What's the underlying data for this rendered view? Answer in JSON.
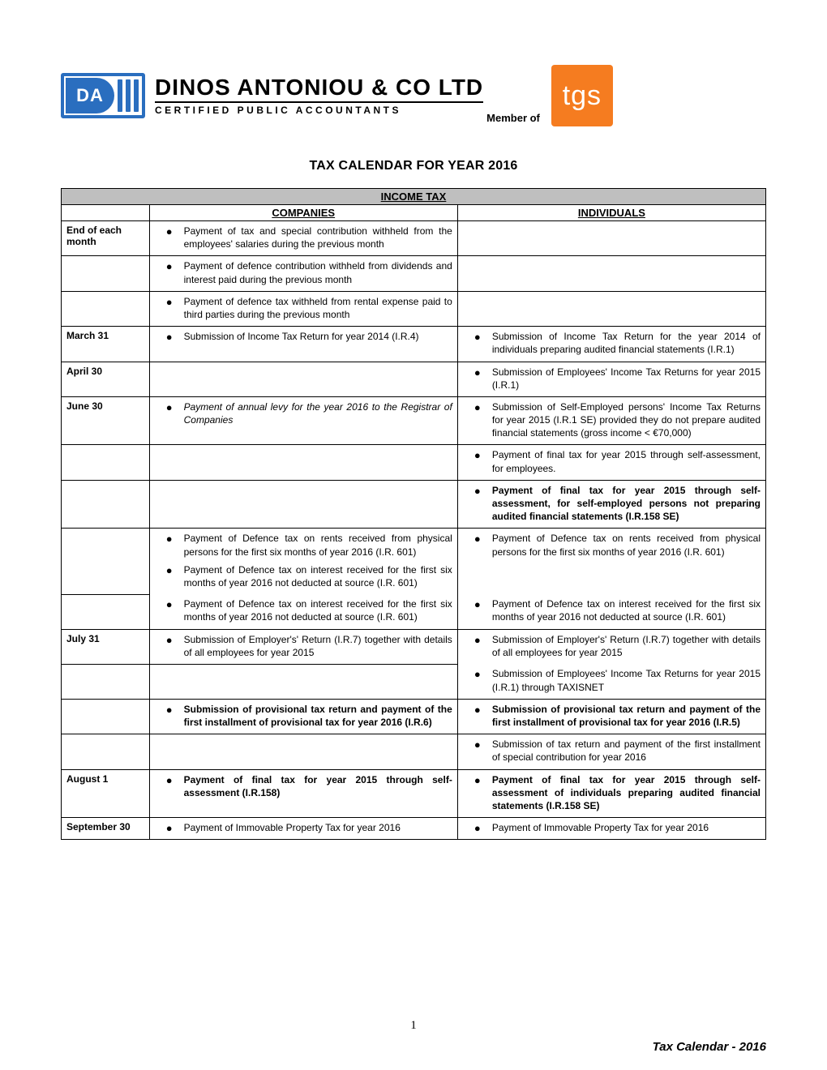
{
  "logo": {
    "mark_letters": "DA",
    "company_name": "DINOS ANTONIOU & CO LTD",
    "company_sub": "CERTIFIED PUBLIC ACCOUNTANTS",
    "member_of": "Member of",
    "tgs": "tgs",
    "brand_blue": "#2a6ebf",
    "brand_orange": "#f57c20"
  },
  "title": "TAX CALENDAR FOR YEAR 2016",
  "table": {
    "income_tax_header": "INCOME TAX",
    "companies_header": "COMPANIES",
    "individuals_header": "INDIVIDUALS",
    "header_bg": "#bfbfbf",
    "rows": [
      {
        "date": "End of each month",
        "comp": "Payment of tax and special contribution withheld from the employees' salaries during the previous month",
        "indiv": ""
      },
      {
        "date": "",
        "comp": "Payment of defence contribution withheld from dividends and interest paid during the previous month",
        "indiv": ""
      },
      {
        "date": "",
        "comp": "Payment of defence tax withheld from rental expense paid to third parties during the previous month",
        "indiv": ""
      },
      {
        "date": "March 31",
        "comp": "Submission of Income Tax Return for year 2014 (I.R.4)",
        "indiv": "Submission of Income Tax Return for the year 2014 of individuals preparing audited financial statements (I.R.1)"
      },
      {
        "date": "April 30",
        "comp": "",
        "indiv": "Submission of Employees' Income Tax Returns for year 2015 (I.R.1)"
      },
      {
        "date": "June 30",
        "comp": "Payment of annual levy for the year 2016 to the Registrar of Companies",
        "comp_italic": true,
        "indiv": "Submission of Self-Employed persons' Income Tax Returns for year 2015 (I.R.1 SE) provided they do not prepare audited financial statements  (gross income < €70,000)"
      },
      {
        "date": "",
        "comp": "",
        "indiv": "Payment of final tax for year 2015 through self-assessment, for employees."
      },
      {
        "date": "",
        "comp": "",
        "indiv": "Payment of final tax for year 2015 through self-assessment, for self-employed persons not preparing audited financial statements (I.R.158 SE)",
        "indiv_bold": true
      },
      {
        "date": "",
        "comp": "Payment of Defence tax on rents received from physical persons for the first six months of year 2016 (I.R. 601)",
        "indiv": "Payment of Defence tax on rents received from physical persons for the first six months of year 2016 (I.R. 601)"
      },
      {
        "date": "",
        "comp": "Payment of Defence tax on interest received  for the first six months of year 2016 not deducted at source (I.R. 601)",
        "indiv": "Payment of Defence tax on interest received  for the first six months of year 2016 not deducted at source (I.R. 601)",
        "merge_top_comp": true,
        "merge_top_indiv": true
      },
      {
        "date": "July  31",
        "comp": "Submission of Employer's' Return (I.R.7) together with details of all employees for year 2015",
        "indiv": "Submission of Employer's' Return (I.R.7) together with details of all employees for year 2015"
      },
      {
        "date": "",
        "comp": "",
        "indiv": "Submission of Employees' Income Tax Returns for year 2015 (I.R.1) through TAXISNET",
        "merge_top_indiv": true
      },
      {
        "date": "",
        "comp": "Submission of provisional tax return and payment of the first installment of provisional tax for year 2016 (I.R.6)",
        "comp_bold": true,
        "indiv": "Submission of provisional tax return and payment of the first installment of provisional tax for year 2016 (I.R.5)",
        "indiv_bold": true
      },
      {
        "date": "",
        "comp": "",
        "indiv": "Submission of tax return and payment of the first installment of special contribution for year 2016"
      },
      {
        "date": "August 1",
        "comp": "Payment of final tax for year 2015 through self-assessment (I.R.158)",
        "comp_bold": true,
        "indiv": "Payment of final tax for year 2015 through self-assessment of individuals preparing audited financial statements (I.R.158 SE)",
        "indiv_bold": true
      },
      {
        "date": "September 30",
        "comp": "Payment of Immovable Property Tax for year 2016",
        "indiv": "Payment of Immovable Property Tax for year 2016"
      }
    ]
  },
  "page_number": "1",
  "footer": "Tax Calendar -  2016"
}
